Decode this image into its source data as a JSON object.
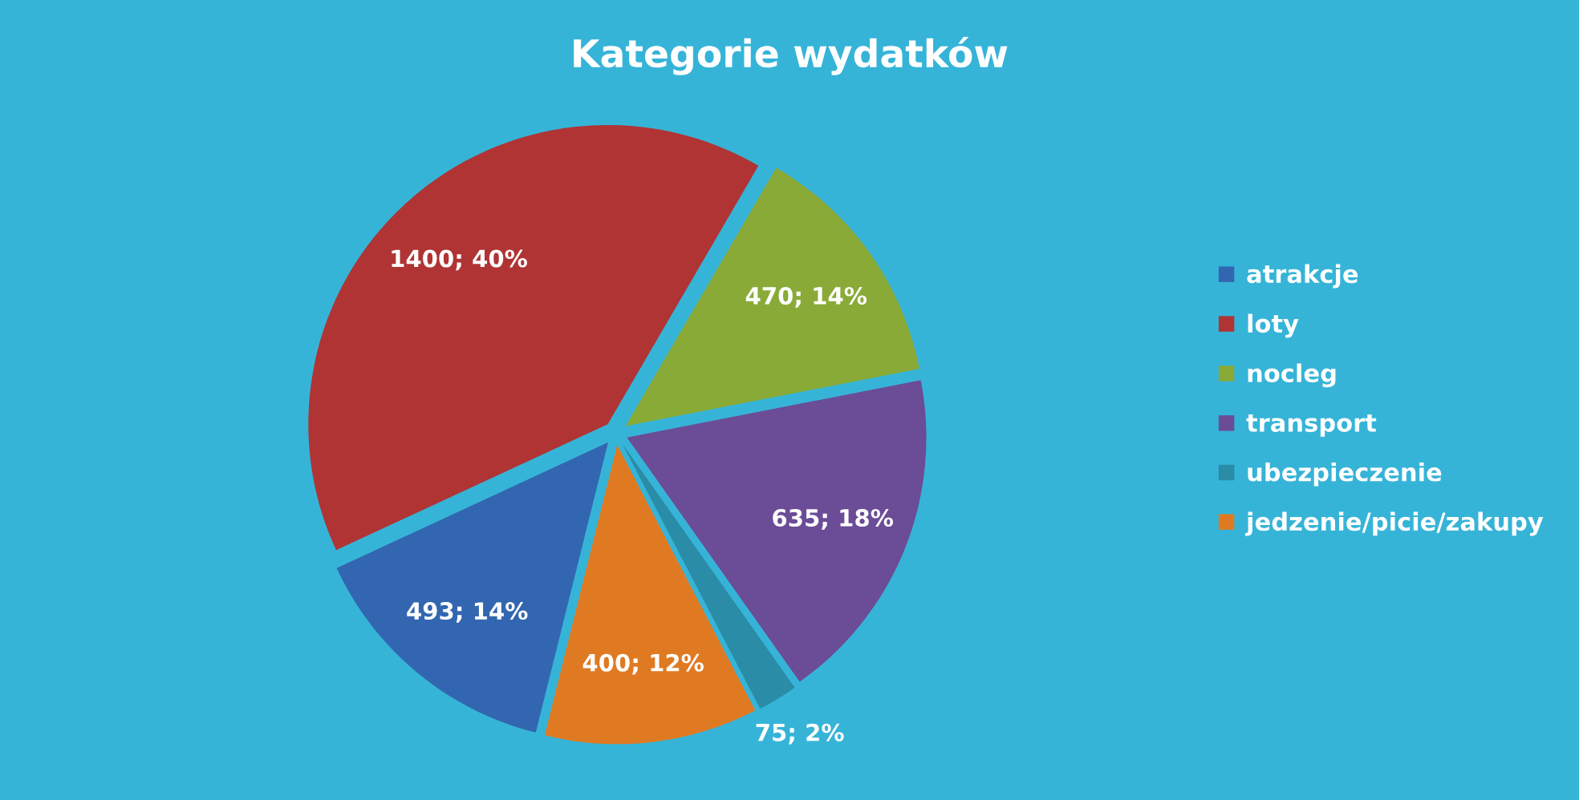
{
  "chart_data": {
    "type": "pie",
    "title": "Kategorie wydatków",
    "categories": [
      "atrakcje",
      "loty",
      "nocleg",
      "transport",
      "ubezpieczenie",
      "jedzenie/picie/zakupy"
    ],
    "values": [
      493,
      1400,
      470,
      635,
      75,
      400
    ],
    "colors": [
      "#3366b0",
      "#b03434",
      "#8aaa38",
      "#6b4c96",
      "#2a8ca6",
      "#e07a22"
    ],
    "value_labels": [
      "493; 14%",
      "1400; 40%",
      "470; 14%",
      "635; 18%",
      "75; 2%",
      "400; 12%"
    ],
    "legend": "right"
  }
}
